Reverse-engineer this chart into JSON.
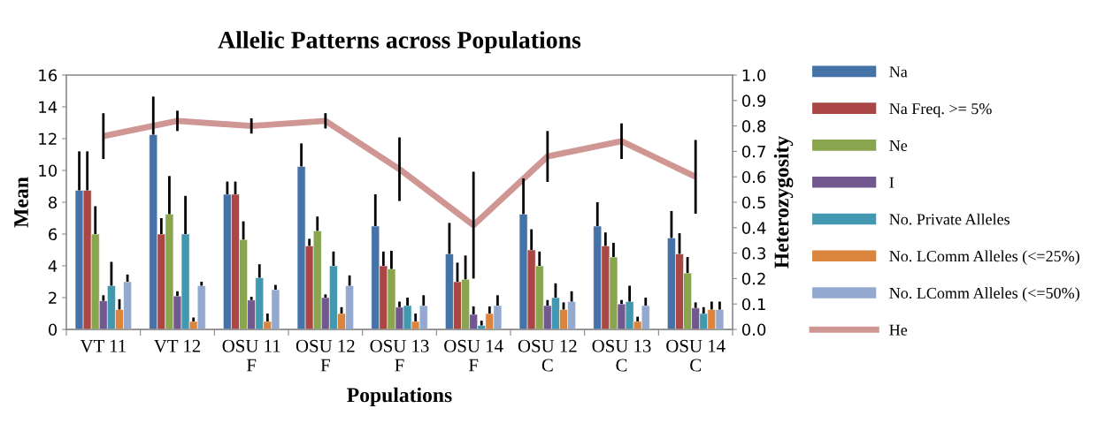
{
  "chart_data": {
    "type": "bar",
    "title": "Allelic Patterns across Populations",
    "xlabel": "Populations",
    "ylabel": "Mean",
    "y2label": "Heterozygosity",
    "categories": [
      "VT 11",
      "VT 12",
      "OSU 11\nF",
      "OSU 12\nF",
      "OSU 13\nF",
      "OSU 14\nF",
      "OSU 12\nC",
      "OSU 13\nC",
      "OSU 14\nC"
    ],
    "series": [
      {
        "name": "Na",
        "color": "#4572a7",
        "values": [
          8.75,
          12.25,
          8.5,
          10.25,
          6.5,
          4.75,
          7.25,
          6.5,
          5.75
        ],
        "errors": [
          2.45,
          2.4,
          0.8,
          1.45,
          2.0,
          1.95,
          2.25,
          1.5,
          1.7
        ]
      },
      {
        "name": "Na Freq. >= 5%",
        "color": "#aa4643",
        "values": [
          8.75,
          6.0,
          8.5,
          5.25,
          4.0,
          3.0,
          5.0,
          5.25,
          4.75
        ],
        "errors": [
          2.45,
          1.0,
          0.8,
          0.45,
          0.9,
          1.2,
          1.3,
          0.85,
          1.3
        ]
      },
      {
        "name": "Ne",
        "color": "#89a54e",
        "values": [
          6.0,
          7.25,
          5.65,
          6.2,
          3.8,
          3.15,
          4.0,
          4.55,
          3.55
        ],
        "errors": [
          1.75,
          2.4,
          1.15,
          0.9,
          1.15,
          1.5,
          0.9,
          0.9,
          1.0
        ]
      },
      {
        "name": "I",
        "color": "#71588f",
        "values": [
          1.8,
          2.1,
          1.85,
          2.0,
          1.4,
          0.95,
          1.5,
          1.6,
          1.35
        ],
        "errors": [
          0.35,
          0.3,
          0.2,
          0.2,
          0.35,
          0.5,
          0.35,
          0.25,
          0.35
        ]
      },
      {
        "name": "No. Private Alleles",
        "color": "#4198af",
        "values": [
          2.75,
          6.0,
          3.25,
          4.0,
          1.5,
          0.25,
          2.0,
          1.75,
          1.0
        ],
        "errors": [
          1.5,
          2.4,
          0.85,
          0.9,
          0.5,
          0.3,
          0.9,
          1.0,
          0.4
        ]
      },
      {
        "name": "No. LComm Alleles (<=25%)",
        "color": "#db843d",
        "values": [
          1.25,
          0.5,
          0.5,
          1.0,
          0.5,
          1.0,
          1.25,
          0.5,
          1.25
        ],
        "errors": [
          0.65,
          0.25,
          0.5,
          0.4,
          0.5,
          0.45,
          0.45,
          0.3,
          0.5
        ]
      },
      {
        "name": "No. LComm Alleles (<=50%)",
        "color": "#93a9cf",
        "values": [
          3.0,
          2.75,
          2.5,
          2.75,
          1.5,
          1.5,
          1.75,
          1.5,
          1.25
        ],
        "errors": [
          0.45,
          0.25,
          0.3,
          0.65,
          0.65,
          0.65,
          0.65,
          0.5,
          0.5
        ]
      },
      {
        "name": "He",
        "type": "line",
        "axis": "y2",
        "color": "#d09694",
        "values": [
          0.76,
          0.82,
          0.8,
          0.82,
          0.63,
          0.41,
          0.68,
          0.74,
          0.6
        ],
        "errors": [
          0.09,
          0.04,
          0.03,
          0.03,
          0.125,
          0.21,
          0.1,
          0.07,
          0.145
        ]
      }
    ],
    "ylim": [
      0,
      16
    ],
    "yticks": [
      0,
      2,
      4,
      6,
      8,
      10,
      12,
      14,
      16
    ],
    "y2lim": [
      0,
      1
    ],
    "y2ticks": [
      {
        "value": 0,
        "label": "0.0"
      },
      {
        "value": 0.1,
        "label": "0.1"
      },
      {
        "value": 0.2,
        "label": "0.2"
      },
      {
        "value": 0.3,
        "label": "0.3"
      },
      {
        "value": 0.4,
        "label": "0.4"
      },
      {
        "value": 0.5,
        "label": "0.5"
      },
      {
        "value": 0.6,
        "label": "0.6"
      },
      {
        "value": 0.7,
        "label": "0.7"
      },
      {
        "value": 0.8,
        "label": "0.8"
      },
      {
        "value": 0.9,
        "label": "0.9"
      },
      {
        "value": 1,
        "label": "1.0"
      }
    ],
    "legend": "right",
    "grid": false
  }
}
